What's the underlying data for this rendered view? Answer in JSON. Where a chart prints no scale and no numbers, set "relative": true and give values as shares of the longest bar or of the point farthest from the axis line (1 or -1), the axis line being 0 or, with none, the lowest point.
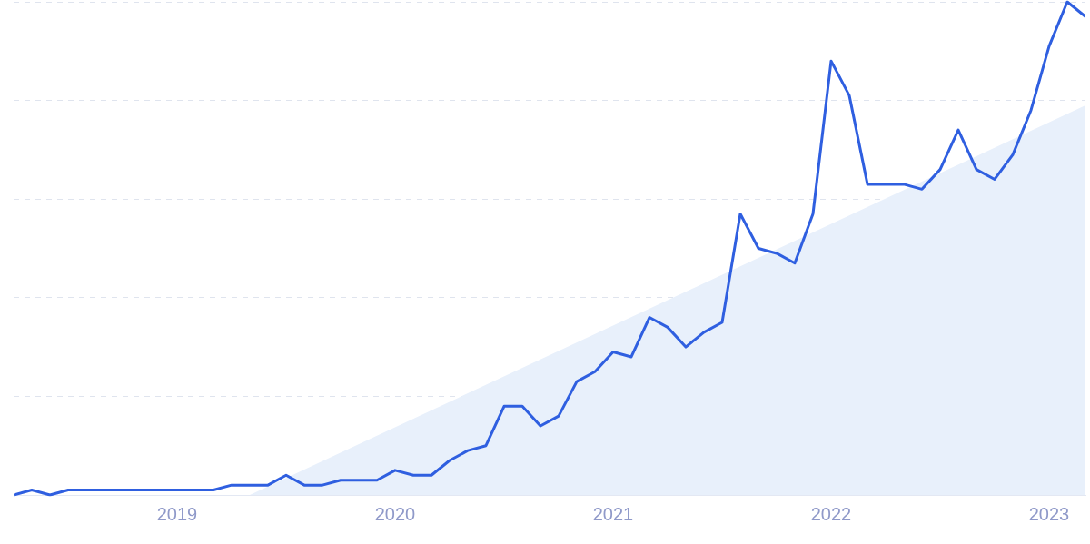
{
  "chart_data": {
    "type": "line",
    "relative": true,
    "grid": "y",
    "x": [
      "2018-04",
      "2018-05",
      "2018-06",
      "2018-07",
      "2018-08",
      "2018-09",
      "2018-10",
      "2018-11",
      "2018-12",
      "2019-01",
      "2019-02",
      "2019-03",
      "2019-04",
      "2019-05",
      "2019-06",
      "2019-07",
      "2019-08",
      "2019-09",
      "2019-10",
      "2019-11",
      "2019-12",
      "2020-01",
      "2020-02",
      "2020-03",
      "2020-04",
      "2020-05",
      "2020-06",
      "2020-07",
      "2020-08",
      "2020-09",
      "2020-10",
      "2020-11",
      "2020-12",
      "2021-01",
      "2021-02",
      "2021-03",
      "2021-04",
      "2021-05",
      "2021-06",
      "2021-07",
      "2021-08",
      "2021-09",
      "2021-10",
      "2021-11",
      "2021-12",
      "2022-01",
      "2022-02",
      "2022-03",
      "2022-04",
      "2022-05",
      "2022-06",
      "2022-07",
      "2022-08",
      "2022-09",
      "2022-10",
      "2022-11",
      "2022-12",
      "2023-01",
      "2023-02",
      "2023-03"
    ],
    "xlim": [
      "2018-04",
      "2023-03"
    ],
    "xticks": [
      "2019",
      "2020",
      "2021",
      "2022",
      "2023"
    ],
    "series": [
      {
        "type": "area",
        "color": "#e8f0fb",
        "x": [
          "2019-05",
          "2023-03"
        ],
        "values": [
          0,
          0.79
        ]
      },
      {
        "color": "#2f5fe0",
        "values": [
          0,
          0.01,
          0,
          0.01,
          0.01,
          0.01,
          0.01,
          0.01,
          0.01,
          0.01,
          0.01,
          0.01,
          0.02,
          0.02,
          0.02,
          0.04,
          0.02,
          0.02,
          0.03,
          0.03,
          0.03,
          0.05,
          0.04,
          0.04,
          0.07,
          0.09,
          0.1,
          0.18,
          0.18,
          0.14,
          0.16,
          0.23,
          0.25,
          0.29,
          0.28,
          0.36,
          0.34,
          0.3,
          0.33,
          0.35,
          0.57,
          0.5,
          0.49,
          0.47,
          0.57,
          0.88,
          0.81,
          0.63,
          0.63,
          0.63,
          0.62,
          0.66,
          0.74,
          0.66,
          0.64,
          0.69,
          0.78,
          0.91,
          1,
          0.97
        ]
      }
    ]
  }
}
